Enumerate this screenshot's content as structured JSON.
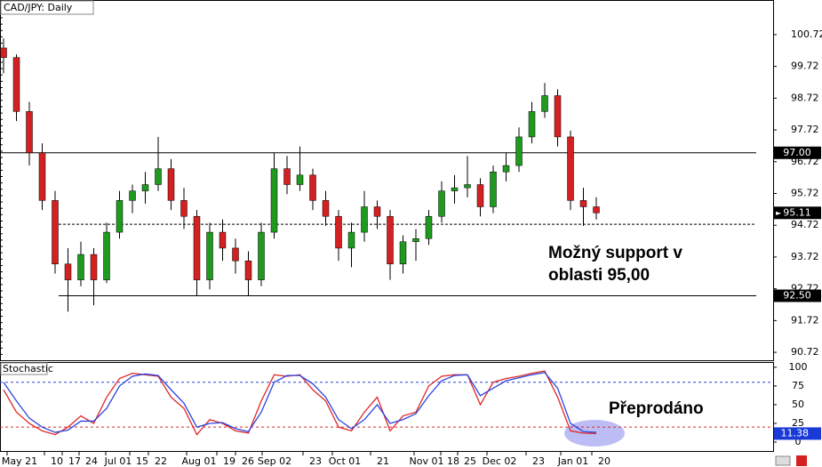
{
  "chart_data": {
    "type": "candlestick",
    "title": "CAD/JPY: Daily",
    "candles": [
      [
        100.3,
        100.6,
        99.5,
        100.0
      ],
      [
        100.0,
        100.1,
        98.0,
        98.3
      ],
      [
        98.3,
        98.6,
        96.6,
        97.0
      ],
      [
        97.0,
        97.3,
        95.2,
        95.5
      ],
      [
        95.5,
        95.8,
        93.2,
        93.5
      ],
      [
        93.5,
        94.0,
        92.0,
        93.0
      ],
      [
        93.0,
        94.2,
        92.8,
        93.8
      ],
      [
        93.8,
        94.0,
        92.2,
        93.0
      ],
      [
        93.0,
        94.8,
        92.9,
        94.5
      ],
      [
        94.5,
        95.8,
        94.3,
        95.5
      ],
      [
        95.5,
        96.0,
        95.1,
        95.8
      ],
      [
        95.8,
        96.4,
        95.4,
        96.0
      ],
      [
        96.0,
        97.5,
        95.8,
        96.5
      ],
      [
        96.5,
        96.8,
        95.2,
        95.5
      ],
      [
        95.5,
        95.9,
        94.6,
        95.0
      ],
      [
        95.0,
        95.2,
        92.5,
        93.0
      ],
      [
        93.0,
        94.8,
        92.7,
        94.5
      ],
      [
        94.5,
        94.9,
        93.6,
        94.0
      ],
      [
        94.0,
        94.3,
        93.2,
        93.6
      ],
      [
        93.6,
        93.9,
        92.5,
        93.0
      ],
      [
        93.0,
        94.8,
        92.8,
        94.5
      ],
      [
        94.5,
        97.0,
        94.3,
        96.5
      ],
      [
        96.5,
        96.9,
        95.7,
        96.0
      ],
      [
        96.0,
        97.2,
        95.8,
        96.3
      ],
      [
        96.3,
        96.5,
        95.2,
        95.5
      ],
      [
        95.5,
        95.8,
        94.7,
        95.0
      ],
      [
        95.0,
        95.2,
        93.6,
        94.0
      ],
      [
        94.0,
        94.8,
        93.4,
        94.5
      ],
      [
        94.5,
        95.8,
        94.2,
        95.3
      ],
      [
        95.3,
        95.5,
        94.6,
        95.0
      ],
      [
        95.0,
        95.2,
        93.0,
        93.5
      ],
      [
        93.5,
        94.4,
        93.2,
        94.2
      ],
      [
        94.2,
        94.6,
        93.6,
        94.3
      ],
      [
        94.3,
        95.2,
        94.1,
        95.0
      ],
      [
        95.0,
        96.1,
        94.8,
        95.8
      ],
      [
        95.8,
        96.3,
        95.4,
        95.9
      ],
      [
        95.9,
        96.9,
        95.6,
        96.0
      ],
      [
        96.0,
        96.2,
        95.0,
        95.3
      ],
      [
        95.3,
        96.6,
        95.1,
        96.4
      ],
      [
        96.4,
        97.0,
        96.1,
        96.6
      ],
      [
        96.6,
        97.8,
        96.4,
        97.5
      ],
      [
        97.5,
        98.6,
        97.3,
        98.3
      ],
      [
        98.3,
        99.2,
        98.1,
        98.8
      ],
      [
        98.8,
        99.0,
        97.2,
        97.5
      ],
      [
        97.5,
        97.7,
        95.2,
        95.5
      ],
      [
        95.5,
        95.9,
        94.7,
        95.3
      ],
      [
        95.3,
        95.6,
        94.9,
        95.11
      ]
    ],
    "up_color": "#1f9a1f",
    "down_color": "#d42020",
    "ylim": [
      90.47,
      101.81
    ],
    "yticks": [
      100.72,
      99.72,
      98.72,
      97.72,
      96.72,
      95.72,
      94.72,
      93.72,
      92.72,
      91.72,
      90.72
    ],
    "x_labels": [
      "May 21",
      "10",
      "17",
      "24",
      "Jul 01",
      "15",
      "22",
      "Aug 01",
      "19",
      "26",
      "Sep 02",
      "23",
      "Oct 01",
      "21",
      "Nov 01",
      "18",
      "25",
      "Dec 02",
      "23",
      "Jan 01",
      "20"
    ],
    "levels": [
      {
        "value": 97,
        "label": "97.00"
      },
      {
        "value": 92.5,
        "label": "92.50"
      }
    ],
    "support_line": 94.75,
    "last_price": 95.11,
    "annotation_lines": [
      "Možný support v",
      "oblasti 95,00"
    ]
  },
  "stochastic": {
    "type": "line",
    "title": "Stochastic",
    "series": [
      {
        "color": "#e02828",
        "values": [
          70,
          40,
          25,
          15,
          10,
          20,
          35,
          25,
          60,
          85,
          92,
          90,
          88,
          60,
          45,
          10,
          30,
          25,
          15,
          12,
          55,
          90,
          88,
          90,
          70,
          55,
          20,
          15,
          40,
          60,
          15,
          35,
          40,
          75,
          88,
          90,
          90,
          50,
          80,
          85,
          88,
          92,
          95,
          60,
          15,
          12,
          11.38
        ]
      },
      {
        "color": "#2a45e0",
        "values": [
          80,
          55,
          32,
          20,
          13,
          16,
          28,
          28,
          45,
          75,
          88,
          91,
          89,
          70,
          52,
          20,
          25,
          26,
          18,
          14,
          40,
          80,
          89,
          89,
          78,
          60,
          30,
          18,
          30,
          50,
          25,
          30,
          38,
          62,
          82,
          89,
          90,
          62,
          72,
          82,
          86,
          90,
          93,
          72,
          25,
          14,
          13
        ]
      }
    ],
    "ylim": [
      0,
      107
    ],
    "yticks": [
      100,
      75,
      50,
      25,
      0
    ],
    "levels": [
      {
        "value": 80,
        "color": "#2a45e0"
      },
      {
        "value": 20,
        "color": "#e02828"
      }
    ],
    "last_value": 11.38,
    "annotation": "Přeprodáno"
  }
}
